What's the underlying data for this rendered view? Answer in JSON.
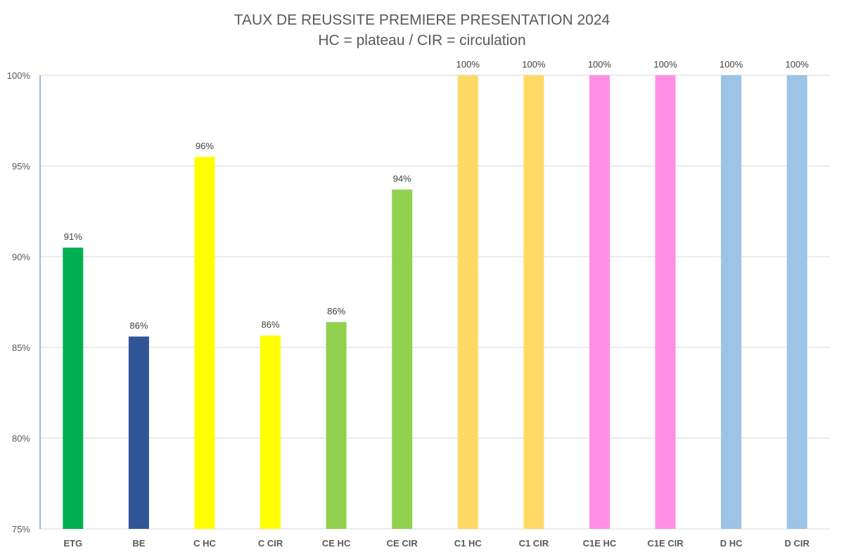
{
  "chart_data": {
    "type": "bar",
    "title": "TAUX DE REUSSITE PREMIERE PRESENTATION 2024",
    "subtitle": "HC = plateau / CIR = circulation",
    "categories": [
      "ETG",
      "BE",
      "C HC",
      "C CIR",
      "CE HC",
      "CE CIR",
      "C1 HC",
      "C1 CIR",
      "C1E HC",
      "C1E CIR",
      "D HC",
      "D CIR"
    ],
    "values": [
      90.5,
      85.6,
      95.5,
      85.65,
      86.4,
      93.7,
      100,
      100,
      100,
      100,
      100,
      100
    ],
    "data_labels": [
      "91%",
      "86%",
      "96%",
      "86%",
      "86%",
      "94%",
      "100%",
      "100%",
      "100%",
      "100%",
      "100%",
      "100%"
    ],
    "colors": [
      "#00B050",
      "#2F5597",
      "#FFFF00",
      "#FFFF00",
      "#92D050",
      "#92D050",
      "#FFD966",
      "#FFD966",
      "#FF8FE5",
      "#FF8FE5",
      "#9DC3E6",
      "#9DC3E6"
    ],
    "yticks": [
      75,
      80,
      85,
      90,
      95,
      100
    ],
    "ytick_labels": [
      "75%",
      "80%",
      "85%",
      "90%",
      "95%",
      "100%"
    ],
    "ylim": [
      75,
      100
    ],
    "xlabel": "",
    "ylabel": "",
    "grid": true,
    "legend": "none"
  }
}
